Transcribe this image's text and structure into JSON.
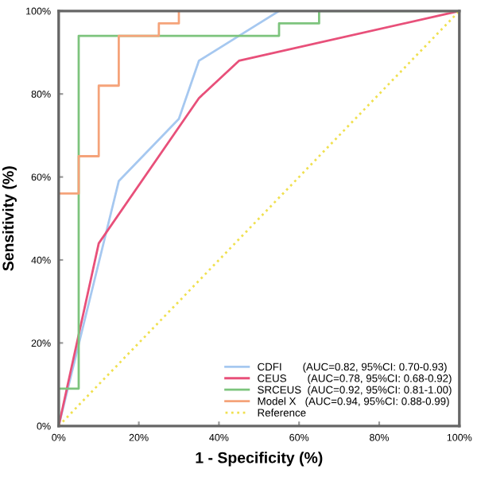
{
  "chart_data": {
    "type": "line",
    "xlabel": "1 - Specificity (%)",
    "ylabel": "Sensitivity (%)",
    "xlim": [
      0,
      100
    ],
    "ylim": [
      0,
      100
    ],
    "xticks": [
      {
        "value": 0,
        "label": "0%"
      },
      {
        "value": 20,
        "label": "20%"
      },
      {
        "value": 40,
        "label": "40%"
      },
      {
        "value": 60,
        "label": "60%"
      },
      {
        "value": 80,
        "label": "80%"
      },
      {
        "value": 100,
        "label": "100%"
      }
    ],
    "yticks": [
      {
        "value": 0,
        "label": "0%"
      },
      {
        "value": 20,
        "label": "20%"
      },
      {
        "value": 40,
        "label": "40%"
      },
      {
        "value": 60,
        "label": "60%"
      },
      {
        "value": 80,
        "label": "80%"
      },
      {
        "value": 100,
        "label": "100%"
      }
    ],
    "grid": false,
    "legend": "bottom right",
    "marker": "none",
    "series": [
      {
        "name": "CDFI       (AUC=0.82, 95%CI: 0.70-0.93)",
        "color": "#a6c8f0",
        "x": [
          0,
          15,
          30,
          35,
          45,
          55
        ],
        "values": [
          0,
          59,
          74,
          88,
          94,
          100
        ]
      },
      {
        "name": "CEUS       (AUC=0.78, 95%CI: 0.68-0.92)",
        "color": "#e8507a",
        "x": [
          0,
          10,
          35,
          45,
          100
        ],
        "values": [
          0,
          44,
          79,
          88,
          100
        ]
      },
      {
        "name": "SRCEUS  (AUC=0.92, 95%CI: 0.81-1.00)",
        "color": "#7dc47d",
        "x": [
          0,
          0,
          5,
          5,
          55,
          55,
          65,
          65,
          100
        ],
        "values": [
          0,
          9,
          9,
          94,
          94,
          97,
          97,
          100,
          100
        ]
      },
      {
        "name": "Model X   (AUC=0.94, 95%CI: 0.88-0.99)",
        "color": "#f5a37a",
        "x": [
          0,
          5,
          5,
          10,
          10,
          15,
          15,
          25,
          25,
          30,
          30
        ],
        "values": [
          56,
          56,
          65,
          65,
          82,
          82,
          94,
          94,
          97,
          97,
          100
        ]
      },
      {
        "name": "Reference",
        "color": "#f0e050",
        "line_style": "dotted",
        "x": [
          0,
          100
        ],
        "values": [
          0,
          100
        ]
      }
    ]
  }
}
